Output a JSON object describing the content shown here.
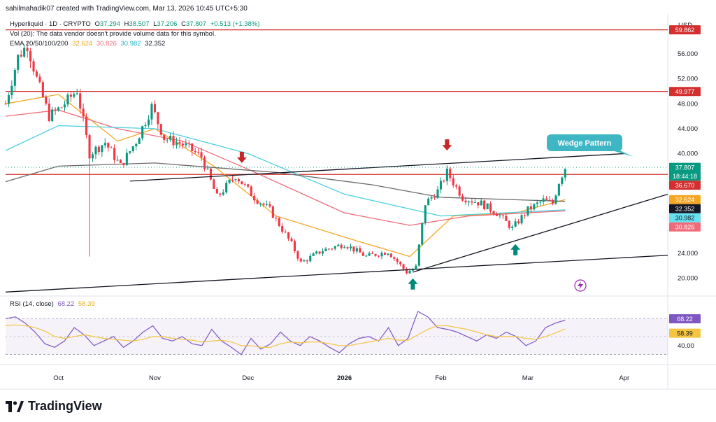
{
  "header": {
    "credit": "sahilmahadik07 created with TradingView.com, Mar 13, 2026 10:45 UTC+5:30"
  },
  "legend": {
    "symbol": "Hyperliquid · 1D · CRYPTO",
    "ohlc": [
      {
        "label": "O",
        "value": "37.294"
      },
      {
        "label": "H",
        "value": "38.507"
      },
      {
        "label": "L",
        "value": "37.206"
      },
      {
        "label": "C",
        "value": "37.807"
      }
    ],
    "change": "+0.513 (+1.38%)",
    "vol_note": "Vol (20): The data vendor doesn't provide volume data for this symbol.",
    "ema_label": "EMA 20/50/100/200",
    "ema_values": [
      "32.624",
      "30.826",
      "30.982",
      "32.352"
    ],
    "rsi_label": "RSI (14, close)",
    "rsi_values": [
      "68.22",
      "58.39"
    ]
  },
  "currency": "USD",
  "brand": "TradingView",
  "colors": {
    "up": "#089981",
    "down": "#f23645",
    "ema20": "#f5a623",
    "ema50": "#f06b7a",
    "ema100": "#4dd0e1",
    "ema200": "#6b6b6b",
    "rsi": "#7e57c2",
    "rsi_ma": "#f5c542",
    "resistance": "#d32f2f",
    "callout": "#3fb6c4"
  },
  "chart_data": [
    {
      "type": "candlestick",
      "title": "Hyperliquid · 1D · CRYPTO",
      "ylim": [
        17.5,
        61.5
      ],
      "y_ticks": [
        "20.000",
        "24.000",
        "40.000",
        "44.000",
        "48.000",
        "52.000",
        "56.000"
      ],
      "x_ticks": [
        "Oct",
        "Nov",
        "Dec",
        "2026",
        "Feb",
        "Mar",
        "Apr"
      ],
      "price_path": [
        {
          "date": "2025-09-14",
          "close": 48.0
        },
        {
          "date": "2025-09-18",
          "close": 55.5
        },
        {
          "date": "2025-09-21",
          "close": 57.5
        },
        {
          "date": "2025-09-24",
          "close": 52.0
        },
        {
          "date": "2025-09-28",
          "close": 46.0
        },
        {
          "date": "2025-10-02",
          "close": 47.5
        },
        {
          "date": "2025-10-07",
          "close": 50.2
        },
        {
          "date": "2025-10-11",
          "close": 40.0
        },
        {
          "date": "2025-10-16",
          "close": 41.8
        },
        {
          "date": "2025-10-21",
          "close": 38.0
        },
        {
          "date": "2025-10-26",
          "close": 42.0
        },
        {
          "date": "2025-10-31",
          "close": 47.5
        },
        {
          "date": "2025-11-04",
          "close": 42.5
        },
        {
          "date": "2025-11-10",
          "close": 41.5
        },
        {
          "date": "2025-11-16",
          "close": 39.5
        },
        {
          "date": "2025-11-21",
          "close": 33.0
        },
        {
          "date": "2025-11-27",
          "close": 36.5
        },
        {
          "date": "2025-12-03",
          "close": 33.0
        },
        {
          "date": "2025-12-08",
          "close": 31.0
        },
        {
          "date": "2025-12-15",
          "close": 25.5
        },
        {
          "date": "2025-12-18",
          "close": 22.5
        },
        {
          "date": "2025-12-25",
          "close": 24.5
        },
        {
          "date": "2026-01-01",
          "close": 25.5
        },
        {
          "date": "2026-01-08",
          "close": 23.5
        },
        {
          "date": "2026-01-15",
          "close": 24.3
        },
        {
          "date": "2026-01-21",
          "close": 21.0
        },
        {
          "date": "2026-01-24",
          "close": 21.8
        },
        {
          "date": "2026-01-27",
          "close": 32.0
        },
        {
          "date": "2026-01-31",
          "close": 34.0
        },
        {
          "date": "2026-02-03",
          "close": 37.0
        },
        {
          "date": "2026-02-08",
          "close": 33.0
        },
        {
          "date": "2026-02-14",
          "close": 32.0
        },
        {
          "date": "2026-02-19",
          "close": 30.5
        },
        {
          "date": "2026-02-24",
          "close": 28.0
        },
        {
          "date": "2026-03-01",
          "close": 31.0
        },
        {
          "date": "2026-03-06",
          "close": 32.5
        },
        {
          "date": "2026-03-09",
          "close": 32.0
        },
        {
          "date": "2026-03-11",
          "close": 35.5
        },
        {
          "date": "2026-03-13",
          "close": 37.807
        }
      ],
      "ema": [
        {
          "name": "EMA 20",
          "last": 32.624,
          "points": [
            [
              "2025-09-14",
              48.0
            ],
            [
              "2025-10-01",
              49.5
            ],
            [
              "2025-10-20",
              42.0
            ],
            [
              "2025-11-01",
              44.0
            ],
            [
              "2025-11-20",
              38.0
            ],
            [
              "2025-12-10",
              30.0
            ],
            [
              "2026-01-05",
              26.0
            ],
            [
              "2026-01-22",
              23.5
            ],
            [
              "2026-02-05",
              30.0
            ],
            [
              "2026-02-25",
              30.5
            ],
            [
              "2026-03-13",
              32.624
            ]
          ]
        },
        {
          "name": "EMA 50",
          "last": 30.826,
          "points": [
            [
              "2025-09-14",
              46.0
            ],
            [
              "2025-10-01",
              47.0
            ],
            [
              "2025-10-20",
              44.0
            ],
            [
              "2025-11-10",
              42.0
            ],
            [
              "2025-12-01",
              37.5
            ],
            [
              "2026-01-01",
              30.5
            ],
            [
              "2026-01-22",
              28.5
            ],
            [
              "2026-02-10",
              30.0
            ],
            [
              "2026-03-13",
              30.826
            ]
          ]
        },
        {
          "name": "EMA 100",
          "last": 30.982,
          "points": [
            [
              "2025-09-14",
              40.5
            ],
            [
              "2025-10-01",
              44.5
            ],
            [
              "2025-11-01",
              44.0
            ],
            [
              "2025-12-01",
              40.0
            ],
            [
              "2026-01-01",
              33.5
            ],
            [
              "2026-02-01",
              30.0
            ],
            [
              "2026-03-13",
              30.982
            ]
          ]
        },
        {
          "name": "EMA 200",
          "last": 32.352,
          "points": [
            [
              "2025-09-14",
              35.5
            ],
            [
              "2025-10-01",
              38.0
            ],
            [
              "2025-11-01",
              38.5
            ],
            [
              "2025-12-10",
              37.0
            ],
            [
              "2026-01-10",
              35.0
            ],
            [
              "2026-02-01",
              33.0
            ],
            [
              "2026-03-13",
              32.352
            ]
          ]
        }
      ],
      "price_labels": [
        {
          "value": "59.862",
          "kind": "resistance"
        },
        {
          "value": "49.977",
          "kind": "resistance"
        },
        {
          "value": "37.807",
          "kind": "last"
        },
        {
          "value": "18:44:18",
          "kind": "countdown"
        },
        {
          "value": "36.670",
          "kind": "resistance"
        },
        {
          "value": "32.624",
          "kind": "ema20"
        },
        {
          "value": "32.352",
          "kind": "ema200"
        },
        {
          "value": "30.982",
          "kind": "ema100"
        },
        {
          "value": "30.826",
          "kind": "ema50"
        }
      ],
      "horizontal_levels": [
        59.862,
        49.977,
        36.67
      ],
      "trendlines": [
        {
          "name": "wedge-upper",
          "from": [
            "2025-10-24",
            35.6
          ],
          "to": [
            "2026-04-01",
            40.0
          ]
        },
        {
          "name": "wedge-lower",
          "from": [
            "2026-01-23",
            21.0
          ],
          "to": [
            "2026-04-15",
            33.5
          ]
        },
        {
          "name": "long-support",
          "from": [
            "2025-09-14",
            17.8
          ],
          "to": [
            "2026-04-15",
            23.7
          ]
        }
      ],
      "annotations": [
        {
          "text": "Wedge Pattern",
          "type": "callout"
        },
        {
          "type": "arrow-down",
          "date": "2025-11-29",
          "value": 38.5
        },
        {
          "type": "arrow-down",
          "date": "2026-02-03",
          "value": 40.5
        },
        {
          "type": "arrow-up",
          "date": "2026-01-23",
          "value": 20.0
        },
        {
          "type": "arrow-up",
          "date": "2026-02-25",
          "value": 25.5
        }
      ]
    },
    {
      "type": "line",
      "title": "RSI (14, close)",
      "ylim": [
        25,
        85
      ],
      "y_ticks": [
        "40.00"
      ],
      "bands": [
        30,
        70
      ],
      "series": [
        {
          "name": "RSI",
          "last": 68.22,
          "values": [
            70,
            72,
            65,
            55,
            42,
            38,
            45,
            60,
            52,
            40,
            45,
            50,
            38,
            45,
            55,
            62,
            48,
            45,
            50,
            42,
            40,
            58,
            45,
            38,
            30,
            48,
            36,
            42,
            55,
            45,
            40,
            50,
            45,
            38,
            32,
            42,
            48,
            50,
            45,
            60,
            40,
            48,
            78,
            72,
            60,
            58,
            55,
            50,
            45,
            52,
            48,
            55,
            50,
            40,
            45,
            60,
            65,
            68.22
          ]
        },
        {
          "name": "RSI-based MA",
          "last": 58.39,
          "values": [
            62,
            63,
            62,
            60,
            56,
            50,
            48,
            50,
            52,
            50,
            48,
            47,
            46,
            45,
            47,
            50,
            50,
            48,
            47,
            46,
            44,
            45,
            46,
            44,
            40,
            40,
            38,
            38,
            42,
            44,
            43,
            44,
            44,
            42,
            40,
            40,
            42,
            44,
            46,
            48,
            46,
            46,
            52,
            58,
            62,
            62,
            60,
            58,
            55,
            52,
            50,
            50,
            50,
            48,
            47,
            50,
            54,
            58.39
          ]
        }
      ],
      "value_labels": [
        "68.22",
        "58.39"
      ]
    }
  ]
}
